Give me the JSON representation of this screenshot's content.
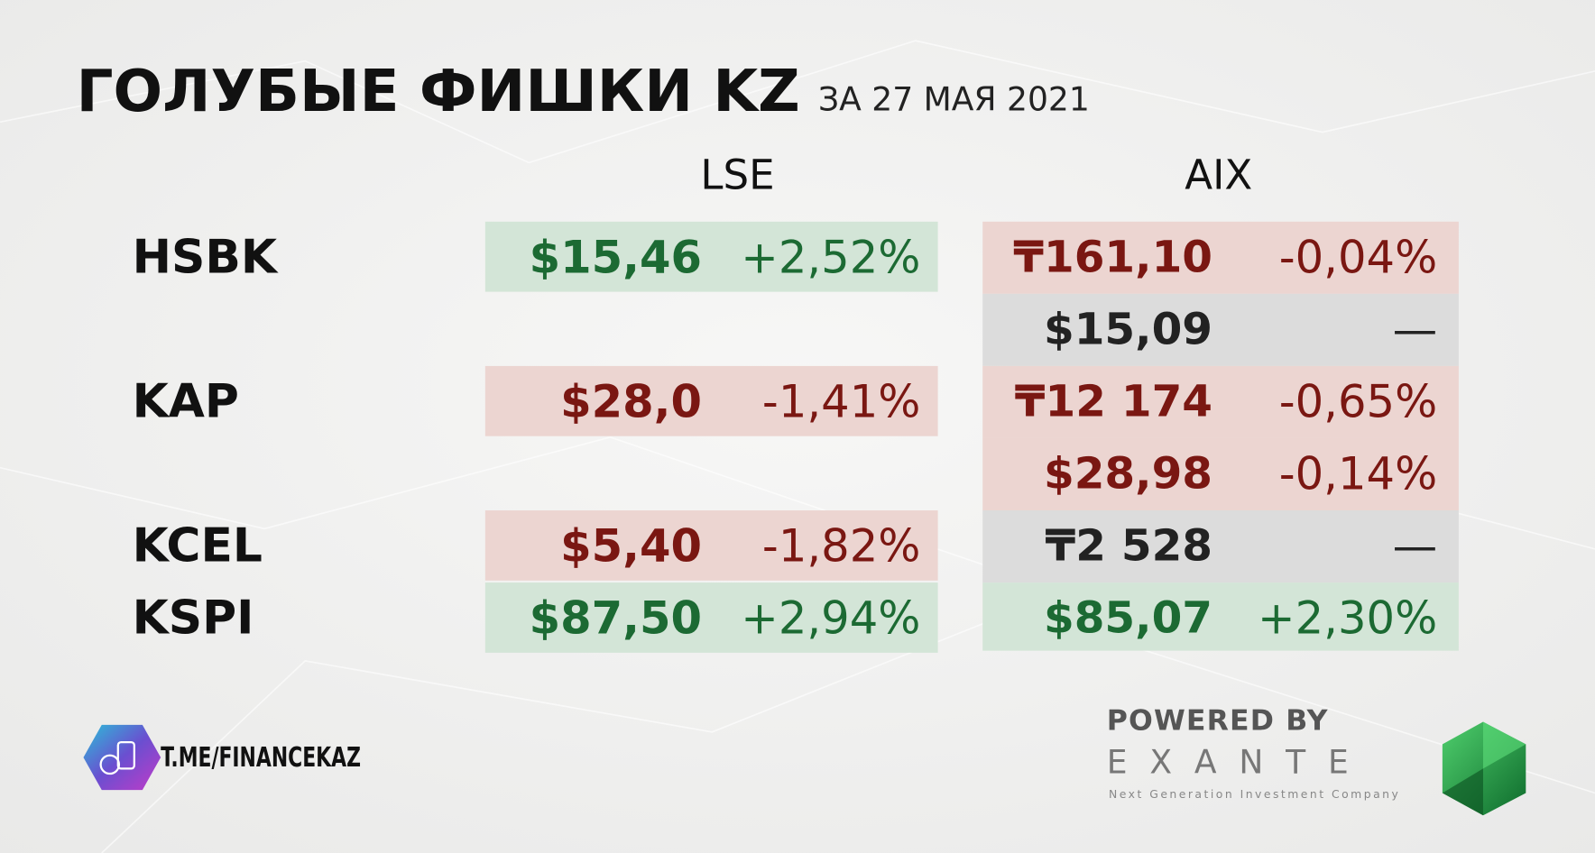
{
  "header": {
    "title": "ГОЛУБЫЕ ФИШКИ KZ",
    "subtitle": "ЗА 27 МАЯ 2021"
  },
  "table": {
    "columns": [
      "LSE",
      "AIX"
    ],
    "rows": [
      {
        "ticker": "HSBK",
        "lse": {
          "price": "$15,46",
          "change": "+2,52%"
        },
        "aix": [
          {
            "price": "₸161,10",
            "change": "-0,04%"
          },
          {
            "price": "$15,09",
            "change": "—"
          }
        ]
      },
      {
        "ticker": "KAP",
        "lse": {
          "price": "$28,0",
          "change": "-1,41%"
        },
        "aix": [
          {
            "price": "₸12 174",
            "change": "-0,65%"
          },
          {
            "price": "$28,98",
            "change": "-0,14%"
          }
        ]
      },
      {
        "ticker": "KCEL",
        "lse": {
          "price": "$5,40",
          "change": "-1,82%"
        },
        "aix": [
          {
            "price": "₸2 528",
            "change": "—"
          }
        ]
      },
      {
        "ticker": "KSPI",
        "lse": {
          "price": "$87,50",
          "change": "+2,94%"
        },
        "aix": [
          {
            "price": "$85,07",
            "change": "+2,30%"
          }
        ]
      }
    ]
  },
  "footer": {
    "channel": "T.ME/FINANCEKAZ",
    "powered_by": "POWERED BY",
    "brand": "EXANTE",
    "tagline": "Next Generation Investment Company"
  }
}
